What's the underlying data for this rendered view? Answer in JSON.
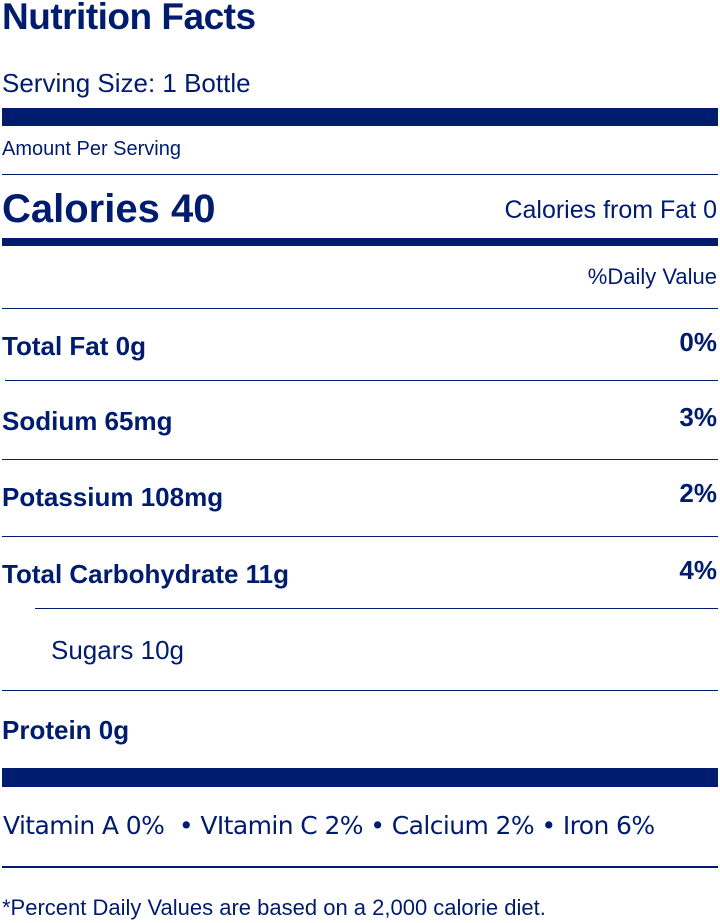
{
  "title": "Nutrition Facts",
  "serving_size": "Serving Size: 1 Bottle",
  "amount_per_serving": "Amount Per Serving",
  "calories": "Calories 40",
  "calories_from_fat": "Calories from Fat 0",
  "daily_value_header": "%Daily Value",
  "nutrients": [
    {
      "label": "Total Fat 0g",
      "dv": "0%"
    },
    {
      "label": "Sodium 65mg",
      "dv": "3%"
    },
    {
      "label": "Potassium 108mg",
      "dv": "2%"
    },
    {
      "label": "Total Carbohydrate 11g",
      "dv": "4%"
    },
    {
      "label": "Sugars 10g",
      "dv": ""
    },
    {
      "label": "Protein 0g",
      "dv": ""
    }
  ],
  "vitamins": "Vitamin A 0%  • VItamin C 2% • Calcium 2% • Iron 6%",
  "footnote": "*Percent Daily Values are based on a 2,000 calorie diet.",
  "colors": {
    "ink": "#001c6e"
  }
}
